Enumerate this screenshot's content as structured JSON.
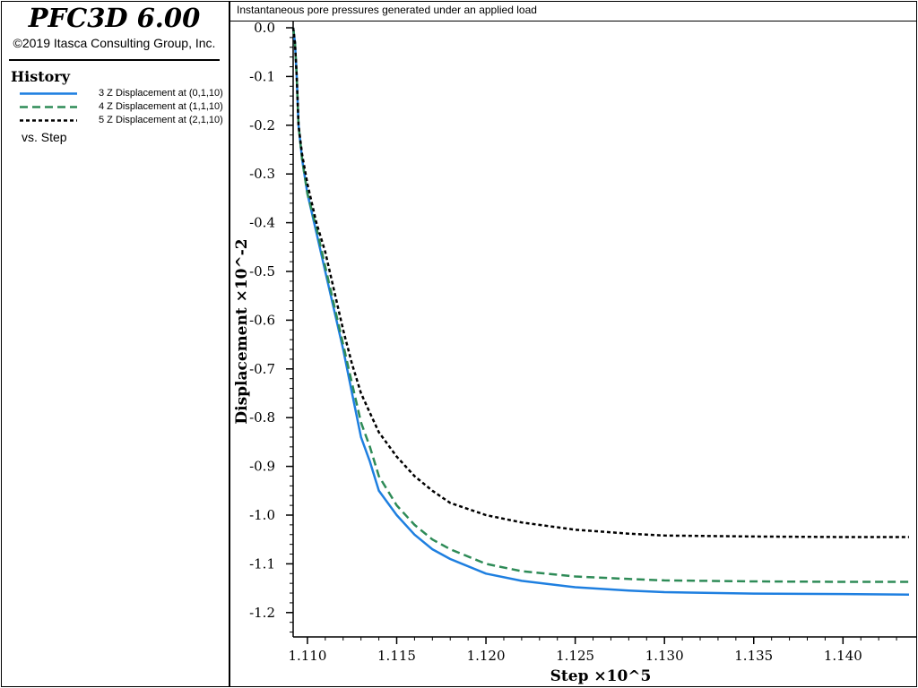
{
  "app": {
    "title": "PFC3D 6.00",
    "copyright": "©2019 Itasca Consulting Group, Inc."
  },
  "legend": {
    "heading": "History",
    "vs_label": "vs. Step",
    "items": [
      {
        "label": "3 Z Displacement at (0,1,10)",
        "color": "#1e7fe0",
        "style": "solid"
      },
      {
        "label": "4 Z Displacement at (1,1,10)",
        "color": "#2e8b57",
        "style": "dashed"
      },
      {
        "label": "5 Z Displacement at (2,1,10)",
        "color": "#000000",
        "style": "dotted"
      }
    ]
  },
  "chart_data": {
    "type": "line",
    "title": "Instantaneous pore pressures generated under an applied load",
    "xlabel": "Step ×10^5",
    "ylabel": "Displacement ×10^-2",
    "xlim": [
      1.1092,
      1.1437
    ],
    "ylim": [
      -1.25,
      0.0
    ],
    "x_ticks": [
      1.11,
      1.115,
      1.12,
      1.125,
      1.13,
      1.135,
      1.14
    ],
    "x_tick_labels": [
      "1.110",
      "1.115",
      "1.120",
      "1.125",
      "1.130",
      "1.135",
      "1.140"
    ],
    "y_ticks": [
      0.0,
      -0.1,
      -0.2,
      -0.3,
      -0.4,
      -0.5,
      -0.6,
      -0.7,
      -0.8,
      -0.9,
      -1.0,
      -1.1,
      -1.2
    ],
    "y_tick_labels": [
      "0.0",
      "-0.1",
      "-0.2",
      "-0.3",
      "-0.4",
      "-0.5",
      "-0.6",
      "-0.7",
      "-0.8",
      "-0.9",
      "-1.0",
      "-1.1",
      "-1.2"
    ],
    "y_minor_step": 0.02,
    "x_minor_step": 0.001,
    "grid": false,
    "series": [
      {
        "name": "3 Z Displacement at (0,1,10)",
        "x": [
          1.1092,
          1.1093,
          1.1094,
          1.1095,
          1.1097,
          1.11,
          1.1105,
          1.111,
          1.1115,
          1.112,
          1.1125,
          1.113,
          1.1135,
          1.114,
          1.115,
          1.116,
          1.117,
          1.118,
          1.12,
          1.122,
          1.125,
          1.128,
          1.13,
          1.135,
          1.14,
          1.1437
        ],
        "values": [
          0.0,
          -0.03,
          -0.1,
          -0.2,
          -0.27,
          -0.34,
          -0.42,
          -0.5,
          -0.58,
          -0.66,
          -0.75,
          -0.84,
          -0.89,
          -0.95,
          -1.0,
          -1.04,
          -1.07,
          -1.09,
          -1.12,
          -1.135,
          -1.148,
          -1.155,
          -1.158,
          -1.161,
          -1.162,
          -1.163
        ]
      },
      {
        "name": "4 Z Displacement at (1,1,10)",
        "x": [
          1.1092,
          1.1093,
          1.1094,
          1.1095,
          1.1097,
          1.11,
          1.1105,
          1.111,
          1.1115,
          1.112,
          1.1125,
          1.113,
          1.1135,
          1.114,
          1.115,
          1.116,
          1.117,
          1.118,
          1.12,
          1.122,
          1.125,
          1.128,
          1.13,
          1.135,
          1.14,
          1.1437
        ],
        "values": [
          0.0,
          -0.03,
          -0.1,
          -0.2,
          -0.27,
          -0.34,
          -0.41,
          -0.49,
          -0.57,
          -0.65,
          -0.73,
          -0.81,
          -0.86,
          -0.92,
          -0.98,
          -1.02,
          -1.05,
          -1.07,
          -1.1,
          -1.115,
          -1.126,
          -1.131,
          -1.134,
          -1.136,
          -1.137,
          -1.137
        ]
      },
      {
        "name": "5 Z Displacement at (2,1,10)",
        "x": [
          1.1092,
          1.1093,
          1.1094,
          1.1095,
          1.1097,
          1.11,
          1.1105,
          1.111,
          1.1115,
          1.112,
          1.1125,
          1.113,
          1.1135,
          1.114,
          1.115,
          1.116,
          1.117,
          1.118,
          1.12,
          1.122,
          1.125,
          1.128,
          1.13,
          1.135,
          1.14,
          1.1437
        ],
        "values": [
          0.0,
          -0.03,
          -0.1,
          -0.2,
          -0.26,
          -0.32,
          -0.4,
          -0.46,
          -0.54,
          -0.62,
          -0.69,
          -0.75,
          -0.79,
          -0.83,
          -0.88,
          -0.92,
          -0.95,
          -0.975,
          -1.0,
          -1.015,
          -1.03,
          -1.038,
          -1.042,
          -1.044,
          -1.045,
          -1.045
        ]
      }
    ]
  }
}
